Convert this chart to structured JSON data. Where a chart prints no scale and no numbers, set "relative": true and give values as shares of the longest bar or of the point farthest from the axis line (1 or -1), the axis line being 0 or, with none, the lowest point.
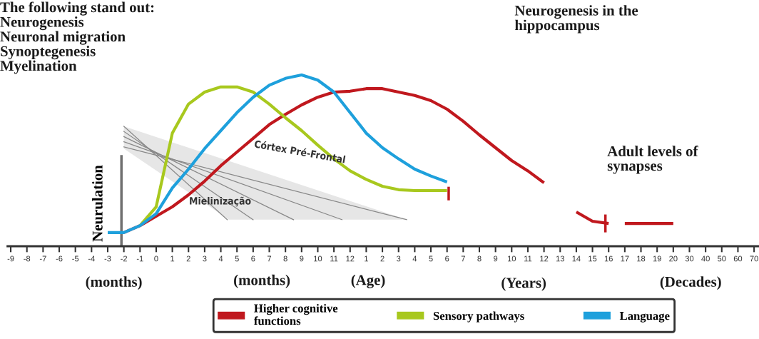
{
  "chart_data": {
    "type": "line",
    "relative": true,
    "categories": [
      "-9",
      "-8",
      "-7",
      "-6",
      "-5",
      "-4",
      "-3",
      "-2",
      "-1",
      "0",
      "1",
      "2",
      "3",
      "4",
      "5",
      "6",
      "7",
      "8",
      "9",
      "10",
      "11",
      "12",
      "1",
      "2",
      "3",
      "4",
      "5",
      "6",
      "7",
      "8",
      "9",
      "10",
      "11",
      "12",
      "13",
      "14",
      "15",
      "16",
      "17",
      "18",
      "19",
      "20",
      "30",
      "40",
      "50",
      "60",
      "70"
    ],
    "series": [
      {
        "name": "Higher cognitive\nfunctions",
        "color": "#c0181e",
        "values": [
          null,
          null,
          null,
          null,
          null,
          null,
          null,
          0.08,
          0.12,
          0.175,
          0.23,
          0.3,
          0.38,
          0.47,
          0.55,
          0.63,
          0.71,
          0.77,
          0.825,
          0.87,
          0.9,
          0.905,
          0.92,
          0.92,
          0.9,
          0.88,
          0.85,
          0.8,
          0.73,
          0.65,
          0.575,
          0.5,
          0.44,
          0.37,
          null,
          0.2,
          0.146,
          0.133,
          null,
          null,
          null,
          null,
          null,
          null,
          null,
          null,
          null
        ]
      },
      {
        "color": "#c0181e",
        "values": [
          null,
          null,
          null,
          null,
          null,
          null,
          null,
          null,
          null,
          null,
          null,
          null,
          null,
          null,
          null,
          null,
          null,
          null,
          null,
          null,
          null,
          null,
          null,
          null,
          null,
          null,
          null,
          null,
          null,
          null,
          null,
          null,
          null,
          null,
          null,
          null,
          null,
          null,
          0.133,
          0.133,
          0.133,
          0.133,
          null,
          null,
          null,
          null,
          null
        ]
      },
      {
        "name": "Sensory pathways",
        "color": "#a8c81e",
        "values": [
          null,
          null,
          null,
          null,
          null,
          null,
          null,
          null,
          0.12,
          0.23,
          0.66,
          0.83,
          0.9,
          0.93,
          0.93,
          0.9,
          0.83,
          0.75,
          0.675,
          0.59,
          0.51,
          0.44,
          0.39,
          0.35,
          0.33,
          0.325,
          0.325,
          0.325,
          null,
          null,
          null,
          null,
          null,
          null,
          null,
          null,
          null,
          null,
          null,
          null,
          null,
          null,
          null,
          null,
          null,
          null,
          null
        ]
      },
      {
        "name": "Language",
        "color": "#1ea0dc",
        "values": [
          null,
          null,
          null,
          null,
          null,
          null,
          0.08,
          0.08,
          0.12,
          0.19,
          0.34,
          0.45,
          0.57,
          0.675,
          0.78,
          0.87,
          0.94,
          0.98,
          1.0,
          0.97,
          0.9,
          0.78,
          0.66,
          0.575,
          0.51,
          0.45,
          0.41,
          0.375,
          null,
          null,
          null,
          null,
          null,
          null,
          null,
          null,
          null,
          null,
          null,
          null,
          null,
          null,
          null,
          null,
          null,
          null,
          null
        ]
      }
    ],
    "ref_lines": [
      {
        "axis": "x",
        "value": "-2",
        "label": "Neurulation",
        "color": "#707070"
      }
    ],
    "annotations": [
      "The following stand out:\nNeurogenesis\nNeuronal migration\nSynoptegenesis\nMyelination",
      "Neurogenesis in the\nhippocampus",
      "Adult levels of\nsynapses",
      "Córtex Pré-Frontal",
      "Mielinização",
      "(months)",
      "(months)",
      "(Age)",
      "(Years)",
      "(Decades)"
    ],
    "legend": "bottom",
    "grid": false,
    "marker": "none",
    "line_style": "solid"
  }
}
